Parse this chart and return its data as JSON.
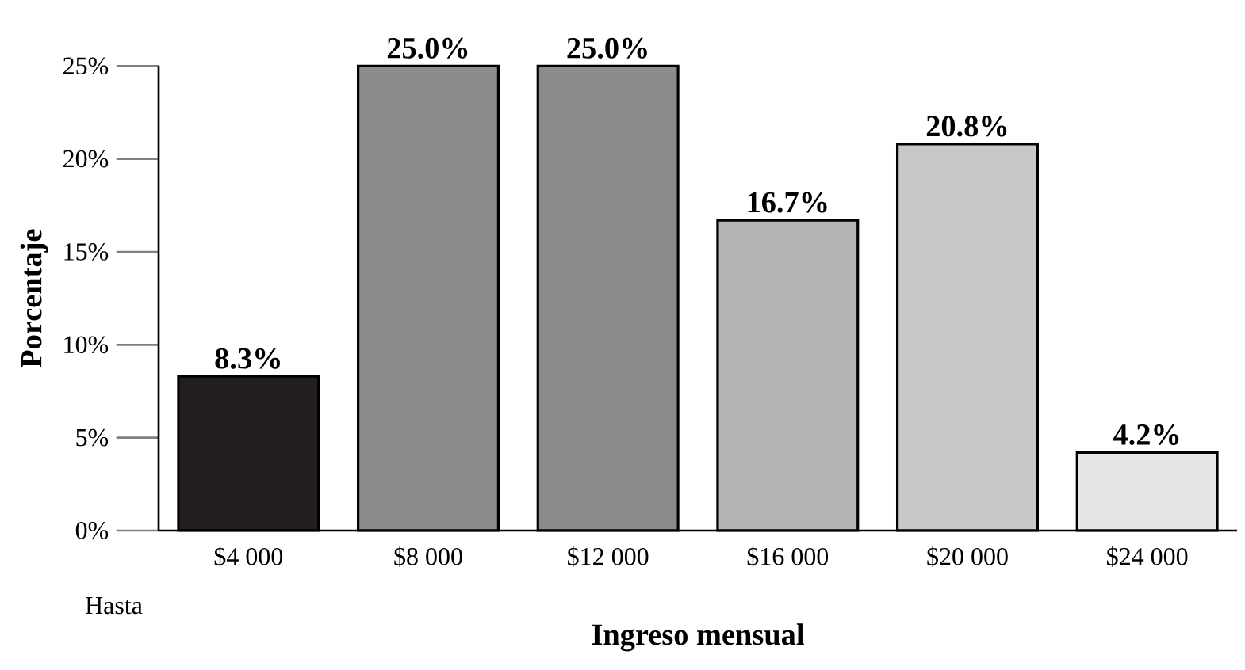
{
  "chart_data": {
    "type": "bar",
    "xlabel": "Ingreso mensual",
    "ylabel": "Porcentaje",
    "categories": [
      "$4 000",
      "$8 000",
      "$12 000",
      "$16 000",
      "$20 000",
      "$24 000"
    ],
    "values": [
      8.3,
      25.0,
      25.0,
      16.7,
      20.8,
      4.2
    ],
    "value_labels": [
      "8.3%",
      "25.0%",
      "25.0%",
      "16.7%",
      "20.8%",
      "4.2%"
    ],
    "colors": [
      "#231f20",
      "#8c8c8c",
      "#8c8c8c",
      "#b4b4b4",
      "#c8c8c8",
      "#e6e6e6"
    ],
    "ylim": [
      0,
      25
    ],
    "yticks": [
      {
        "value": 0,
        "label": "0%"
      },
      {
        "value": 5,
        "label": "5%"
      },
      {
        "value": 10,
        "label": "10%"
      },
      {
        "value": 15,
        "label": "15%"
      },
      {
        "value": 20,
        "label": "20%"
      },
      {
        "value": 25,
        "label": "25%"
      }
    ],
    "annotations": [
      "Hasta"
    ],
    "grid": false
  }
}
